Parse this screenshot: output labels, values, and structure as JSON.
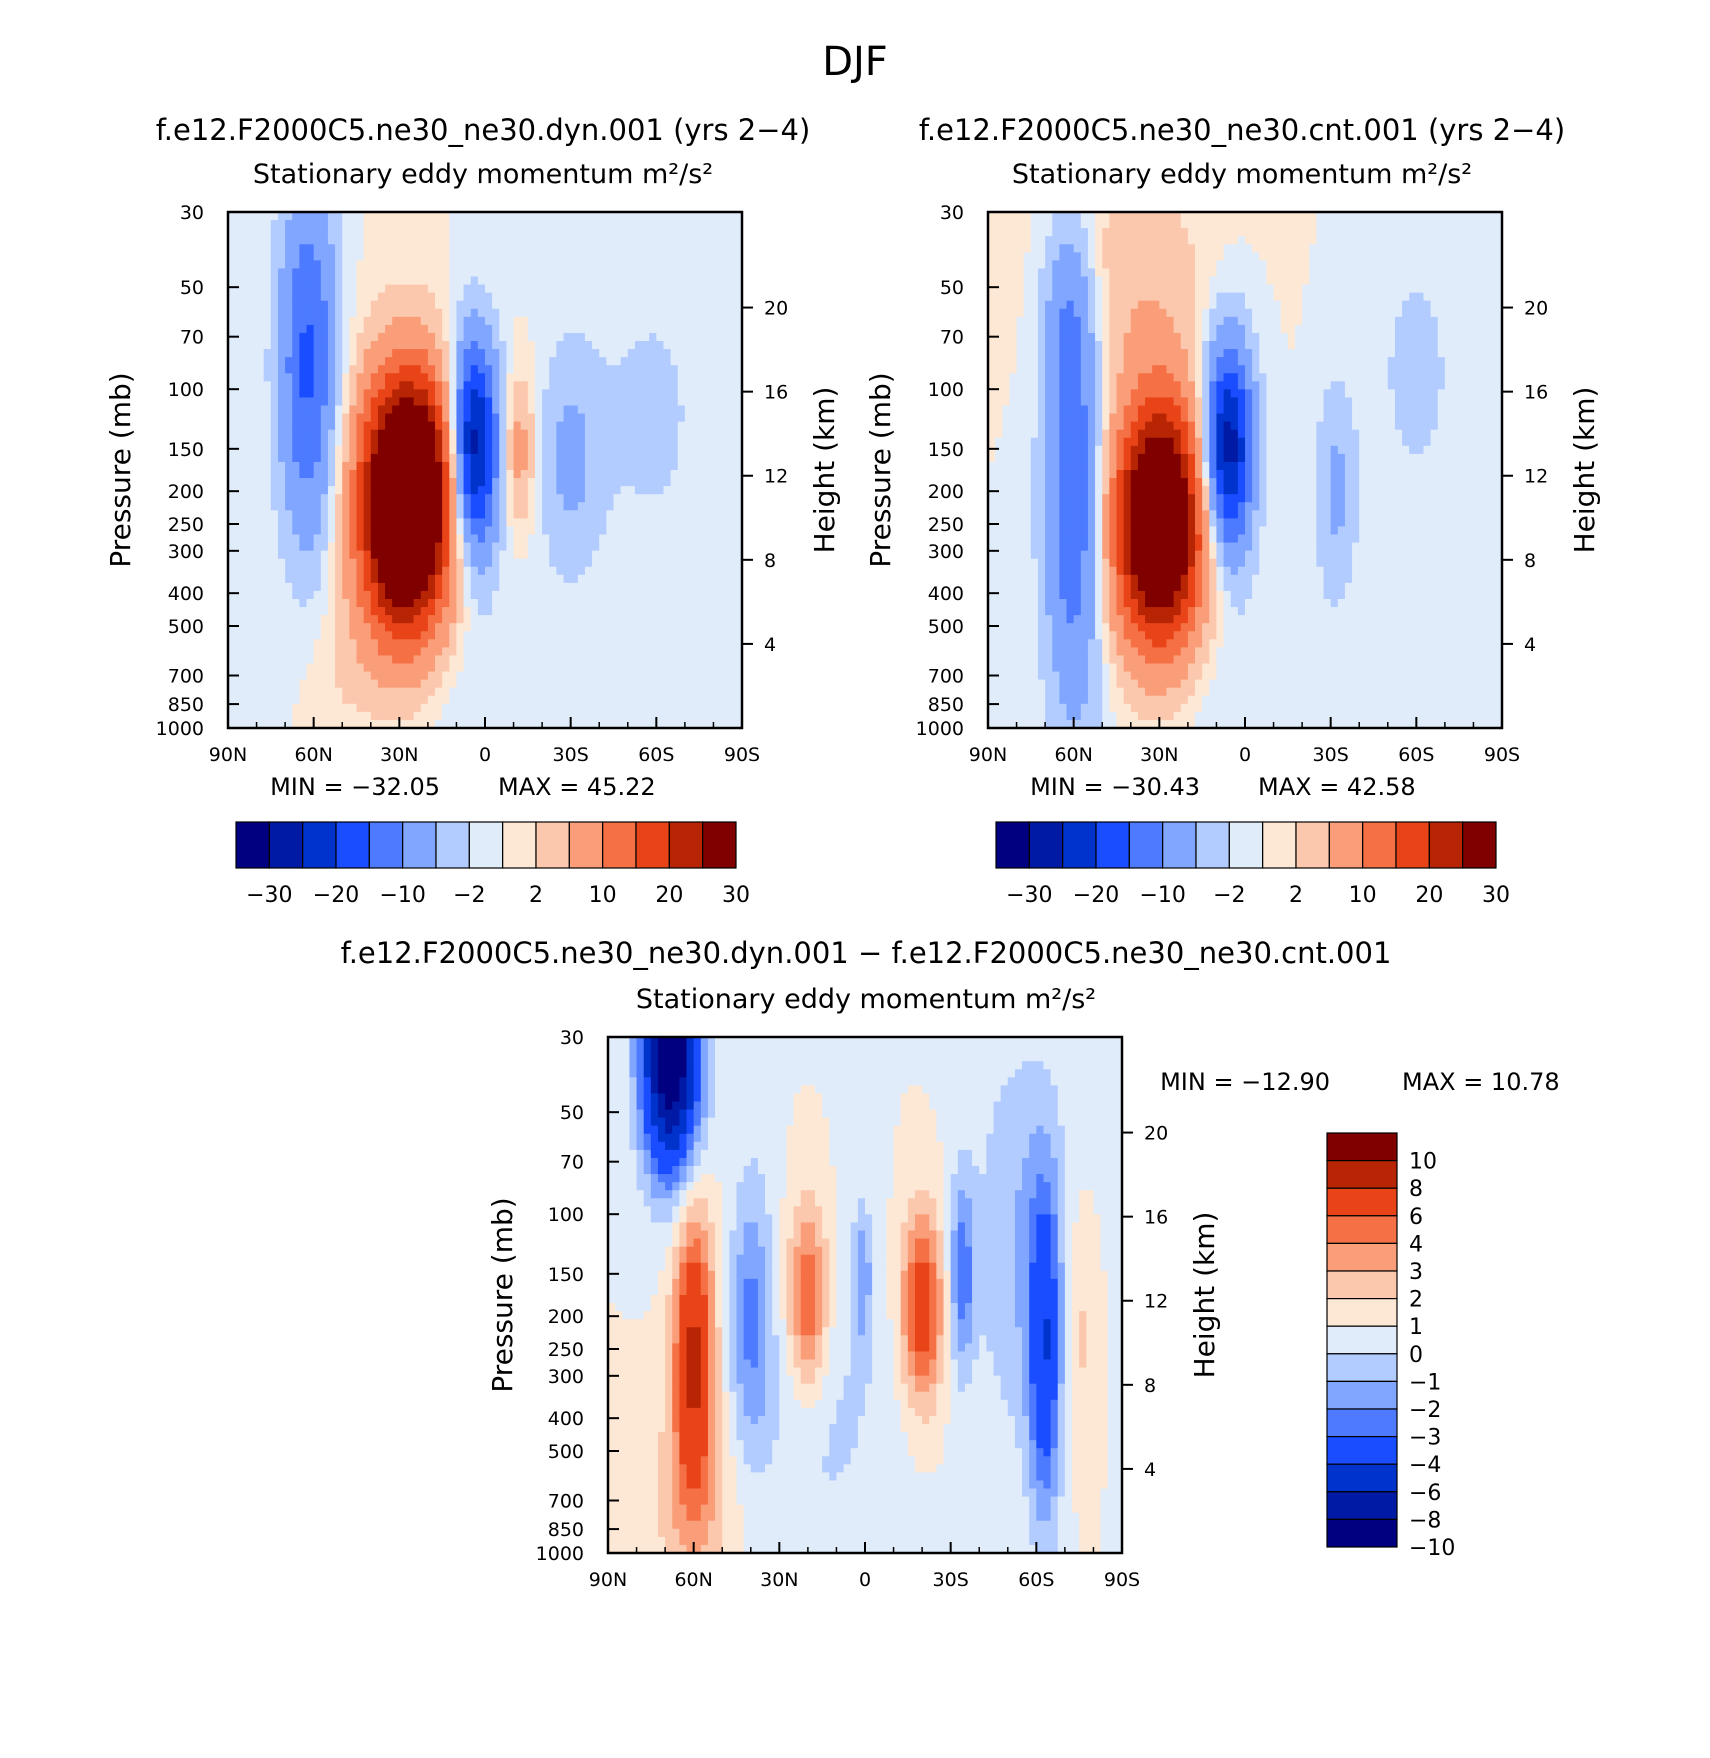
{
  "figure_title": "DJF",
  "chart_data": [
    {
      "type": "contour",
      "title": "f.e12.F2000C5.ne30_ne30.dyn.001 (yrs 2−4)",
      "subtitle": "Stationary eddy momentum",
      "units": "m²/s²",
      "x_label": "",
      "x_ticks": [
        "90N",
        "60N",
        "30N",
        "0",
        "30S",
        "60S",
        "90S"
      ],
      "x_range": [
        90,
        -90
      ],
      "y_label": "Pressure (mb)",
      "y_ticks": [
        "30",
        "50",
        "70",
        "100",
        "150",
        "200",
        "250",
        "300",
        "400",
        "500",
        "700",
        "850",
        "1000"
      ],
      "y_range": [
        1000,
        30
      ],
      "y2_label": "Height (km)",
      "y2_ticks": [
        "20",
        "16",
        "12",
        "8",
        "4"
      ],
      "min_text": "MIN = −32.05",
      "max_text": "MAX = 45.22",
      "min": -32.05,
      "max": 45.22,
      "colorbar_labels": [
        "−30",
        "−20",
        "−10",
        "−2",
        "2",
        "10",
        "20",
        "30"
      ],
      "features": [
        {
          "desc": "positive jet max",
          "lat": 28,
          "pressure": 230,
          "value": 40
        },
        {
          "desc": "negative tropical core",
          "lat": 3,
          "pressure": 150,
          "value": -30
        },
        {
          "desc": "negative high-latitude band",
          "lat": 62,
          "pressure": 80,
          "value": -15
        },
        {
          "desc": "negative southern lobe",
          "lat": -30,
          "pressure": 160,
          "value": -5
        }
      ]
    },
    {
      "type": "contour",
      "title": "f.e12.F2000C5.ne30_ne30.cnt.001 (yrs 2−4)",
      "subtitle": "Stationary eddy momentum",
      "units": "m²/s²",
      "x_label": "",
      "x_ticks": [
        "90N",
        "60N",
        "30N",
        "0",
        "30S",
        "60S",
        "90S"
      ],
      "x_range": [
        90,
        -90
      ],
      "y_label": "Pressure (mb)",
      "y_ticks": [
        "30",
        "50",
        "70",
        "100",
        "150",
        "200",
        "250",
        "300",
        "400",
        "500",
        "700",
        "850",
        "1000"
      ],
      "y_range": [
        1000,
        30
      ],
      "y2_label": "Height (km)",
      "y2_ticks": [
        "20",
        "16",
        "12",
        "8",
        "4"
      ],
      "min_text": "MIN = −30.43",
      "max_text": "MAX = 42.58",
      "min": -30.43,
      "max": 42.58,
      "colorbar_labels": [
        "−30",
        "−20",
        "−10",
        "−2",
        "2",
        "10",
        "20",
        "30"
      ],
      "features": [
        {
          "desc": "positive jet max",
          "lat": 30,
          "pressure": 250,
          "value": 38
        },
        {
          "desc": "negative tropical core",
          "lat": 7,
          "pressure": 150,
          "value": -28
        },
        {
          "desc": "negative high-latitude band",
          "lat": 60,
          "pressure": 200,
          "value": -15
        },
        {
          "desc": "negative southern lobe",
          "lat": -32,
          "pressure": 200,
          "value": -6
        }
      ]
    },
    {
      "type": "contour",
      "title": "f.e12.F2000C5.ne30_ne30.dyn.001 − f.e12.F2000C5.ne30_ne30.cnt.001",
      "subtitle": "Stationary eddy momentum",
      "units": "m²/s²",
      "x_label": "",
      "x_ticks": [
        "90N",
        "60N",
        "30N",
        "0",
        "30S",
        "60S",
        "90S"
      ],
      "x_range": [
        90,
        -90
      ],
      "y_label": "Pressure (mb)",
      "y_ticks": [
        "30",
        "50",
        "70",
        "100",
        "150",
        "200",
        "250",
        "300",
        "400",
        "500",
        "700",
        "850",
        "1000"
      ],
      "y_range": [
        1000,
        30
      ],
      "y2_label": "Height (km)",
      "y2_ticks": [
        "20",
        "16",
        "12",
        "8",
        "4"
      ],
      "min_text": "MIN = −12.90",
      "max_text": "MAX = 10.78",
      "min": -12.9,
      "max": 10.78,
      "colorbar_labels": [
        "10",
        "8",
        "6",
        "4",
        "3",
        "2",
        "1",
        "0",
        "−1",
        "−2",
        "−3",
        "−4",
        "−6",
        "−8",
        "−10"
      ],
      "features": [
        {
          "desc": "negative stratospheric max",
          "lat": 68,
          "pressure": 35,
          "value": -12
        },
        {
          "desc": "positive mid-latitude lobe",
          "lat": 60,
          "pressure": 260,
          "value": 6
        },
        {
          "desc": "positive subtropical lobe",
          "lat": 20,
          "pressure": 180,
          "value": 4
        },
        {
          "desc": "positive southern subtropical lobe",
          "lat": -20,
          "pressure": 190,
          "value": 5
        },
        {
          "desc": "negative southern band",
          "lat": -62,
          "pressure": 260,
          "value": -5
        }
      ]
    }
  ],
  "colormap": {
    "main": [
      "#000080",
      "#001aa6",
      "#0033cc",
      "#1a4dff",
      "#4d7aff",
      "#80a6ff",
      "#b3ccff",
      "#e0ecfa",
      "#fde8d6",
      "#fcc8ad",
      "#fa9e7a",
      "#f57045",
      "#e94418",
      "#b72505",
      "#800000"
    ],
    "diff": [
      "#000080",
      "#001aa6",
      "#0033cc",
      "#1a4dff",
      "#4d7aff",
      "#80a6ff",
      "#b3ccff",
      "#e0ecfa",
      "#fde8d6",
      "#fcc8ad",
      "#fa9e7a",
      "#f57045",
      "#e94418",
      "#b72505",
      "#800000"
    ]
  }
}
